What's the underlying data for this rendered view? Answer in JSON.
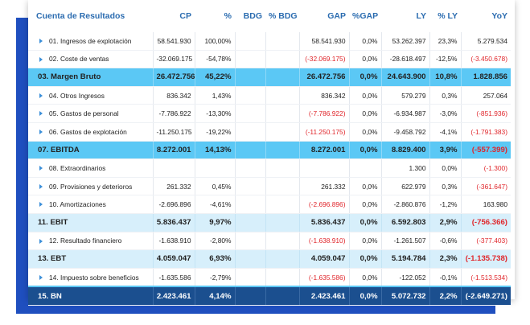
{
  "table": {
    "columns": [
      "Cuenta de Resultados",
      "CP",
      "%",
      "BDG",
      "% BDG",
      "GAP",
      "%GAP",
      "LY",
      "% LY",
      "YoY"
    ],
    "rows": [
      {
        "style": "sub",
        "cells": [
          "01. Ingresos de explotación",
          "58.541.930",
          "100,00%",
          null,
          null,
          "58.541.930",
          "0,0%",
          "53.262.397",
          "23,3%",
          "5.279.534"
        ]
      },
      {
        "style": "sub",
        "cells": [
          "02. Coste de ventas",
          "-32.069.175",
          "-54,78%",
          null,
          null,
          "(-32.069.175)",
          "0,0%",
          "-28.618.497",
          "-12,5%",
          "(-3.450.678)"
        ]
      },
      {
        "style": "total",
        "cells": [
          "03. Margen Bruto",
          "26.472.756",
          "45,22%",
          null,
          null,
          "26.472.756",
          "0,0%",
          "24.643.900",
          "10,8%",
          "1.828.856"
        ]
      },
      {
        "style": "sub",
        "cells": [
          "04. Otros Ingresos",
          "836.342",
          "1,43%",
          null,
          null,
          "836.342",
          "0,0%",
          "579.279",
          "0,3%",
          "257.064"
        ]
      },
      {
        "style": "sub",
        "cells": [
          "05. Gastos de personal",
          "-7.786.922",
          "-13,30%",
          null,
          null,
          "(-7.786.922)",
          "0,0%",
          "-6.934.987",
          "-3,0%",
          "(-851.936)"
        ]
      },
      {
        "style": "sub",
        "cells": [
          "06. Gastos de explotación",
          "-11.250.175",
          "-19,22%",
          null,
          null,
          "(-11.250.175)",
          "0,0%",
          "-9.458.792",
          "-4,1%",
          "(-1.791.383)"
        ]
      },
      {
        "style": "total",
        "cells": [
          "07. EBITDA",
          "8.272.001",
          "14,13%",
          null,
          null,
          "8.272.001",
          "0,0%",
          "8.829.400",
          "3,9%",
          "(-557.399)"
        ]
      },
      {
        "style": "sub",
        "cells": [
          "08. Extraordinarios",
          null,
          null,
          null,
          null,
          null,
          null,
          "1.300",
          "0,0%",
          "(-1.300)"
        ]
      },
      {
        "style": "sub",
        "cells": [
          "09. Provisiones y deterioros",
          "261.332",
          "0,45%",
          null,
          null,
          "261.332",
          "0,0%",
          "622.979",
          "0,3%",
          "(-361.647)"
        ]
      },
      {
        "style": "sub",
        "cells": [
          "10. Amortizaciones",
          "-2.696.896",
          "-4,61%",
          null,
          null,
          "(-2.696.896)",
          "0,0%",
          "-2.860.876",
          "-1,2%",
          "163.980"
        ]
      },
      {
        "style": "subtotal",
        "cells": [
          "11. EBIT",
          "5.836.437",
          "9,97%",
          null,
          null,
          "5.836.437",
          "0,0%",
          "6.592.803",
          "2,9%",
          "(-756.366)"
        ]
      },
      {
        "style": "sub",
        "cells": [
          "12. Resultado financiero",
          "-1.638.910",
          "-2,80%",
          null,
          null,
          "(-1.638.910)",
          "0,0%",
          "-1.261.507",
          "-0,6%",
          "(-377.403)"
        ]
      },
      {
        "style": "subtotal",
        "cells": [
          "13. EBT",
          "4.059.047",
          "6,93%",
          null,
          null,
          "4.059.047",
          "0,0%",
          "5.194.784",
          "2,3%",
          "(-1.135.738)"
        ]
      },
      {
        "style": "sub",
        "cells": [
          "14. Impuesto sobre beneficios",
          "-1.635.586",
          "-2,79%",
          null,
          null,
          "(-1.635.586)",
          "0,0%",
          "-122.052",
          "-0,1%",
          "(-1.513.534)"
        ]
      },
      {
        "style": "final",
        "cells": [
          "15. BN",
          "2.423.461",
          "4,14%",
          null,
          null,
          "2.423.461",
          "0,0%",
          "5.072.732",
          "2,2%",
          "(-2.649.271)"
        ]
      }
    ]
  }
}
